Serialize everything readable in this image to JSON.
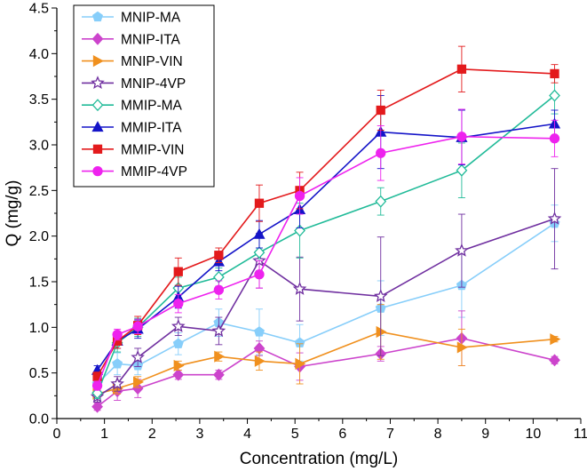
{
  "chart_data": {
    "type": "line",
    "title": "",
    "xlabel": "Concentration (mg/L)",
    "ylabel": "Q (mg/g)",
    "xlim": [
      0,
      11
    ],
    "ylim": [
      0,
      4.5
    ],
    "xticks": [
      0,
      1,
      2,
      3,
      4,
      5,
      6,
      7,
      8,
      9,
      10,
      11
    ],
    "yticks": [
      0.0,
      0.5,
      1.0,
      1.5,
      2.0,
      2.5,
      3.0,
      3.5,
      4.0,
      4.5
    ],
    "xtick_labels": [
      "0",
      "1",
      "2",
      "3",
      "4",
      "5",
      "6",
      "7",
      "8",
      "9",
      "10",
      "11"
    ],
    "ytick_labels": [
      "0.0",
      "0.5",
      "1.0",
      "1.5",
      "2.0",
      "2.5",
      "3.0",
      "3.5",
      "4.0",
      "4.5"
    ],
    "legend_position": "top-left",
    "x": [
      0.85,
      1.27,
      1.7,
      2.55,
      3.4,
      4.25,
      5.1,
      6.8,
      8.5,
      10.45
    ],
    "series": [
      {
        "name": "MNIP-MA",
        "color": "#87cefa",
        "marker": "pentagon",
        "filled": true,
        "values": [
          0.38,
          0.6,
          0.58,
          0.82,
          1.05,
          0.95,
          0.83,
          1.21,
          1.46,
          2.14
        ],
        "errors": [
          0.08,
          0.12,
          0.1,
          0.12,
          0.15,
          0.25,
          0.2,
          0.3,
          0.35,
          0.2
        ]
      },
      {
        "name": "MNIP-ITA",
        "color": "#cc44cc",
        "marker": "diamond",
        "filled": true,
        "values": [
          0.13,
          0.3,
          0.33,
          0.48,
          0.48,
          0.77,
          0.57,
          0.71,
          0.88,
          0.64
        ],
        "errors": [
          0.04,
          0.1,
          0.1,
          0.05,
          0.05,
          0.08,
          0.15,
          0.08,
          0.3,
          0.04
        ]
      },
      {
        "name": "MNIP-VIN",
        "color": "#f0901e",
        "marker": "triangle-right",
        "filled": true,
        "values": [
          0.27,
          0.33,
          0.4,
          0.58,
          0.68,
          0.63,
          0.6,
          0.95,
          0.78,
          0.87
        ],
        "errors": [
          0.05,
          0.06,
          0.06,
          0.05,
          0.05,
          0.1,
          0.22,
          0.3,
          0.2,
          0.03
        ]
      },
      {
        "name": "MNIP-4VP",
        "color": "#7030a0",
        "marker": "star",
        "filled": false,
        "values": [
          0.24,
          0.38,
          0.67,
          1.01,
          0.96,
          1.73,
          1.42,
          1.34,
          1.84,
          2.19
        ],
        "errors": [
          0.06,
          0.08,
          0.1,
          0.1,
          0.15,
          0.3,
          0.35,
          0.65,
          0.4,
          0.55
        ]
      },
      {
        "name": "MMIP-MA",
        "color": "#22bb99",
        "marker": "diamond",
        "filled": false,
        "values": [
          0.28,
          0.83,
          1.0,
          1.43,
          1.55,
          1.82,
          2.06,
          2.38,
          2.72,
          3.54
        ],
        "errors": [
          0.06,
          0.1,
          0.1,
          0.12,
          0.1,
          0.2,
          0.3,
          0.15,
          0.3,
          0.2
        ]
      },
      {
        "name": "MMIP-ITA",
        "color": "#1414c8",
        "marker": "triangle-up",
        "filled": true,
        "values": [
          0.53,
          0.85,
          0.98,
          1.33,
          1.72,
          2.02,
          2.29,
          3.14,
          3.08,
          3.23
        ],
        "errors": [
          0.05,
          0.08,
          0.1,
          0.12,
          0.1,
          0.15,
          0.2,
          0.4,
          0.3,
          0.15
        ]
      },
      {
        "name": "MMIP-VIN",
        "color": "#e31a1c",
        "marker": "square",
        "filled": true,
        "values": [
          0.46,
          0.85,
          1.02,
          1.61,
          1.79,
          2.36,
          2.5,
          3.38,
          3.83,
          3.78
        ],
        "errors": [
          0.05,
          0.08,
          0.1,
          0.15,
          0.08,
          0.2,
          0.2,
          0.22,
          0.25,
          0.1
        ]
      },
      {
        "name": "MMIP-4VP",
        "color": "#ee22ee",
        "marker": "circle",
        "filled": true,
        "values": [
          0.36,
          0.92,
          1.01,
          1.26,
          1.41,
          1.58,
          2.44,
          2.91,
          3.09,
          3.07
        ],
        "errors": [
          0.05,
          0.06,
          0.08,
          0.1,
          0.1,
          0.15,
          0.2,
          0.3,
          0.3,
          0.2
        ]
      }
    ]
  }
}
